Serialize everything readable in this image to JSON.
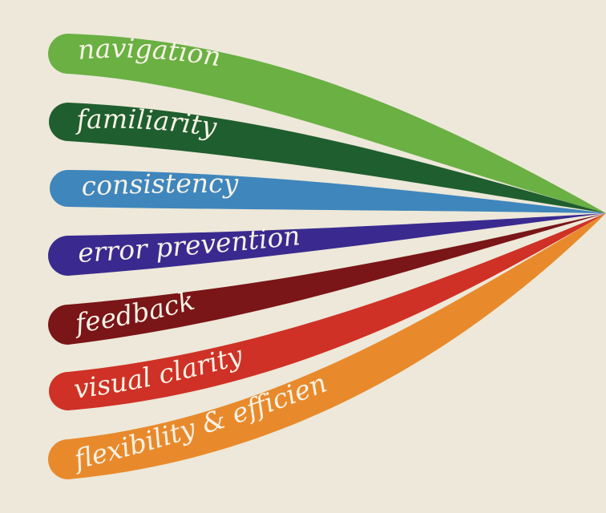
{
  "diagram": {
    "background": "#ede8d9",
    "ribbons": [
      {
        "label": "navigation",
        "color": "#6ab043"
      },
      {
        "label": "familiarity",
        "color": "#1f5e2e"
      },
      {
        "label": "consistency",
        "color": "#3f86bc"
      },
      {
        "label": "error prevention",
        "color": "#3a2a8f"
      },
      {
        "label": "feedback",
        "color": "#7a1518"
      },
      {
        "label": "visual clarity",
        "color": "#cf3126"
      },
      {
        "label": "flexibility & efficiency",
        "color": "#e88a2c"
      }
    ]
  }
}
